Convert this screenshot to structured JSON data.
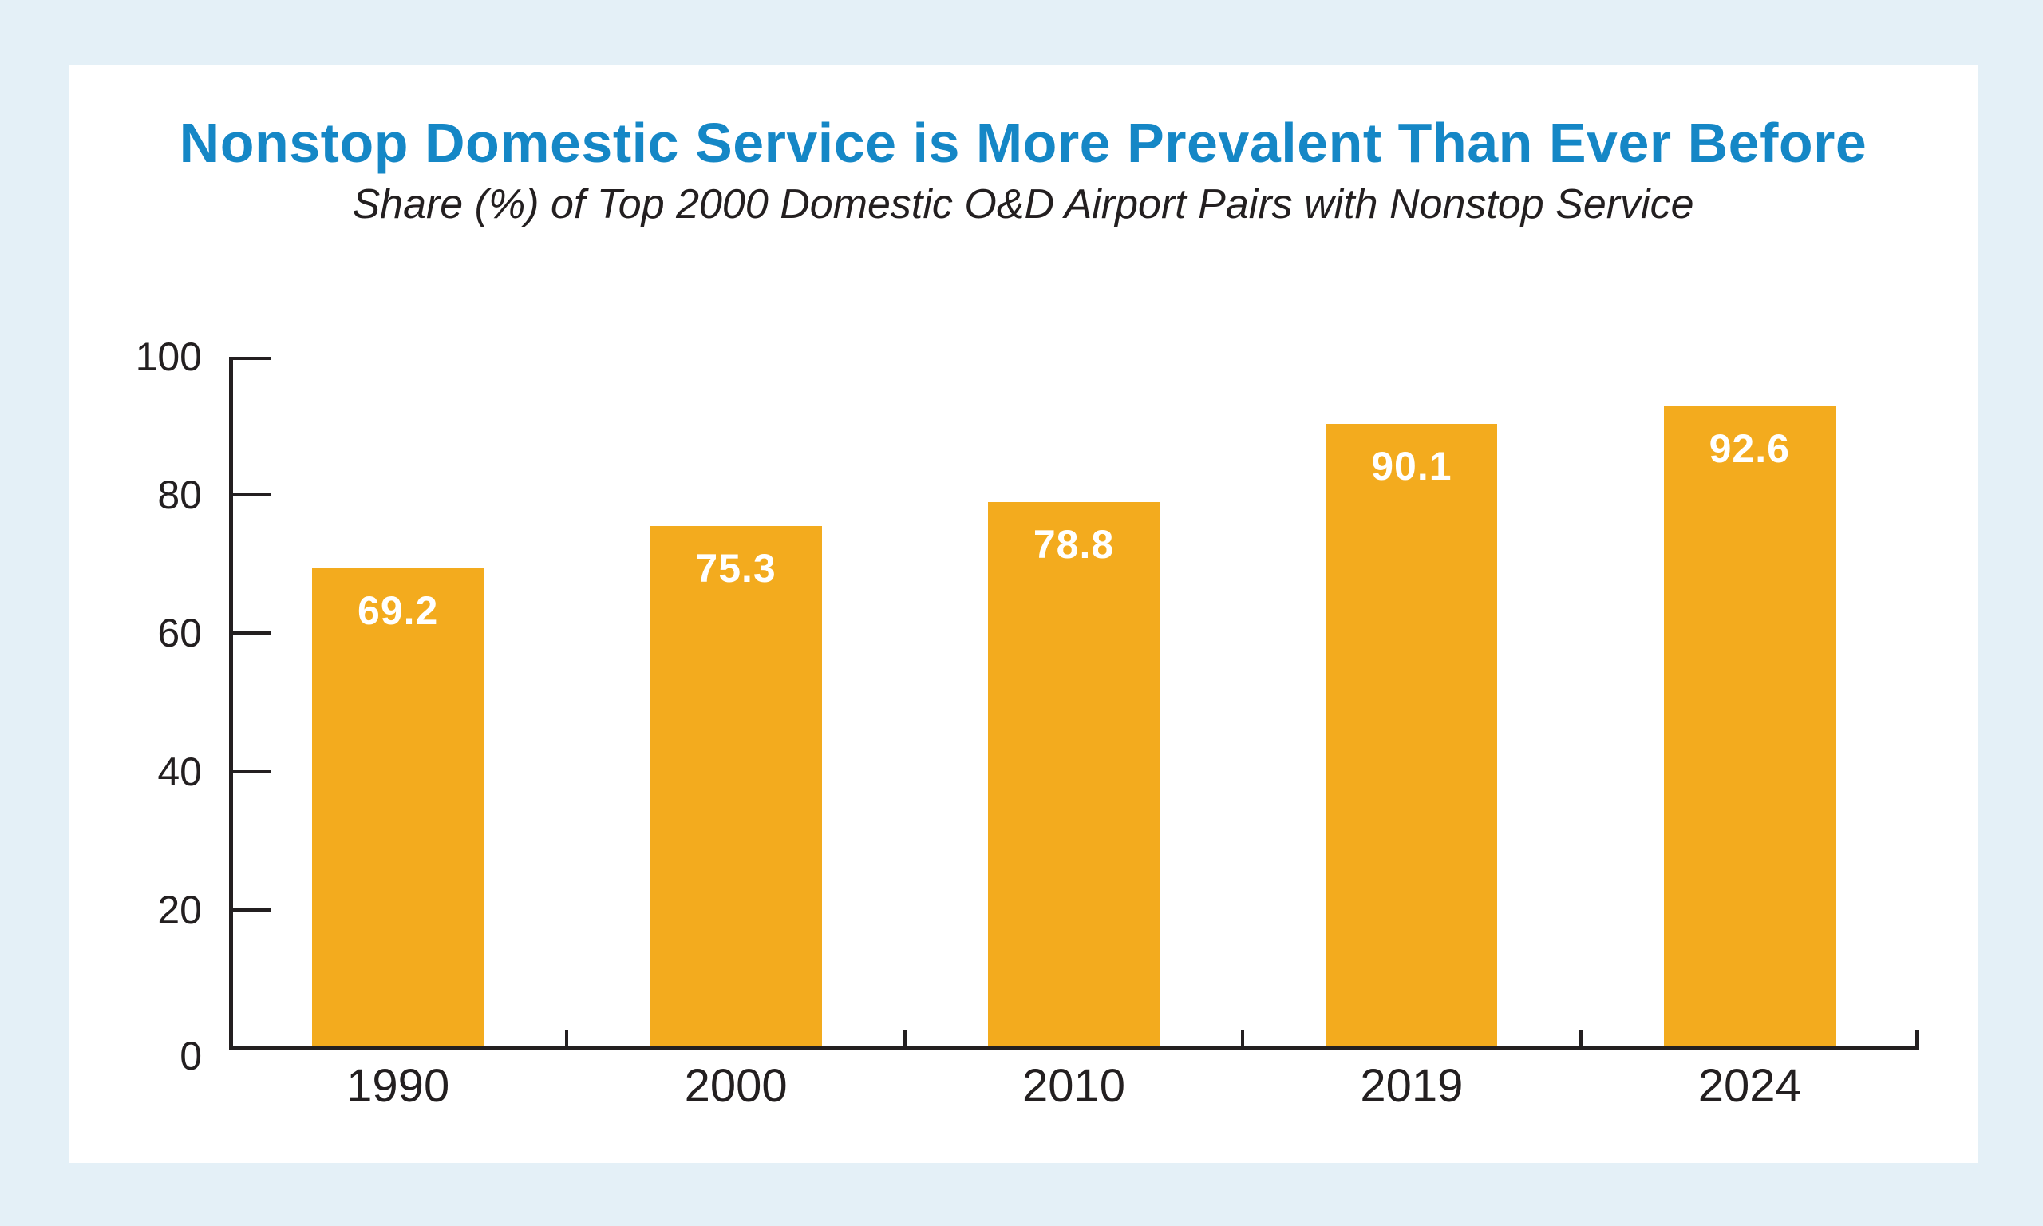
{
  "chart_data": {
    "type": "bar",
    "title": "Nonstop Domestic Service is More Prevalent Than Ever Before",
    "subtitle": "Share (%) of Top 2000 Domestic O&D Airport Pairs with Nonstop Service",
    "categories": [
      "1990",
      "2000",
      "2010",
      "2019",
      "2024"
    ],
    "values": [
      69.2,
      75.3,
      78.8,
      90.1,
      92.6
    ],
    "value_labels": [
      "69.2",
      "75.3",
      "78.8",
      "90.1",
      "92.6"
    ],
    "xlabel": "",
    "ylabel": "",
    "ylim": [
      0,
      100
    ],
    "y_ticks": [
      0,
      20,
      40,
      60,
      80,
      100
    ],
    "grid": false,
    "legend": "none",
    "colors": {
      "bar": "#F3AB1E",
      "value_label": "#FFFFFF",
      "title": "#1587C6",
      "subtitle": "#231F20",
      "axis": "#231F20",
      "tick_label": "#231F20",
      "page_background": "#E4F0F7",
      "card_background": "#FFFFFF"
    }
  }
}
